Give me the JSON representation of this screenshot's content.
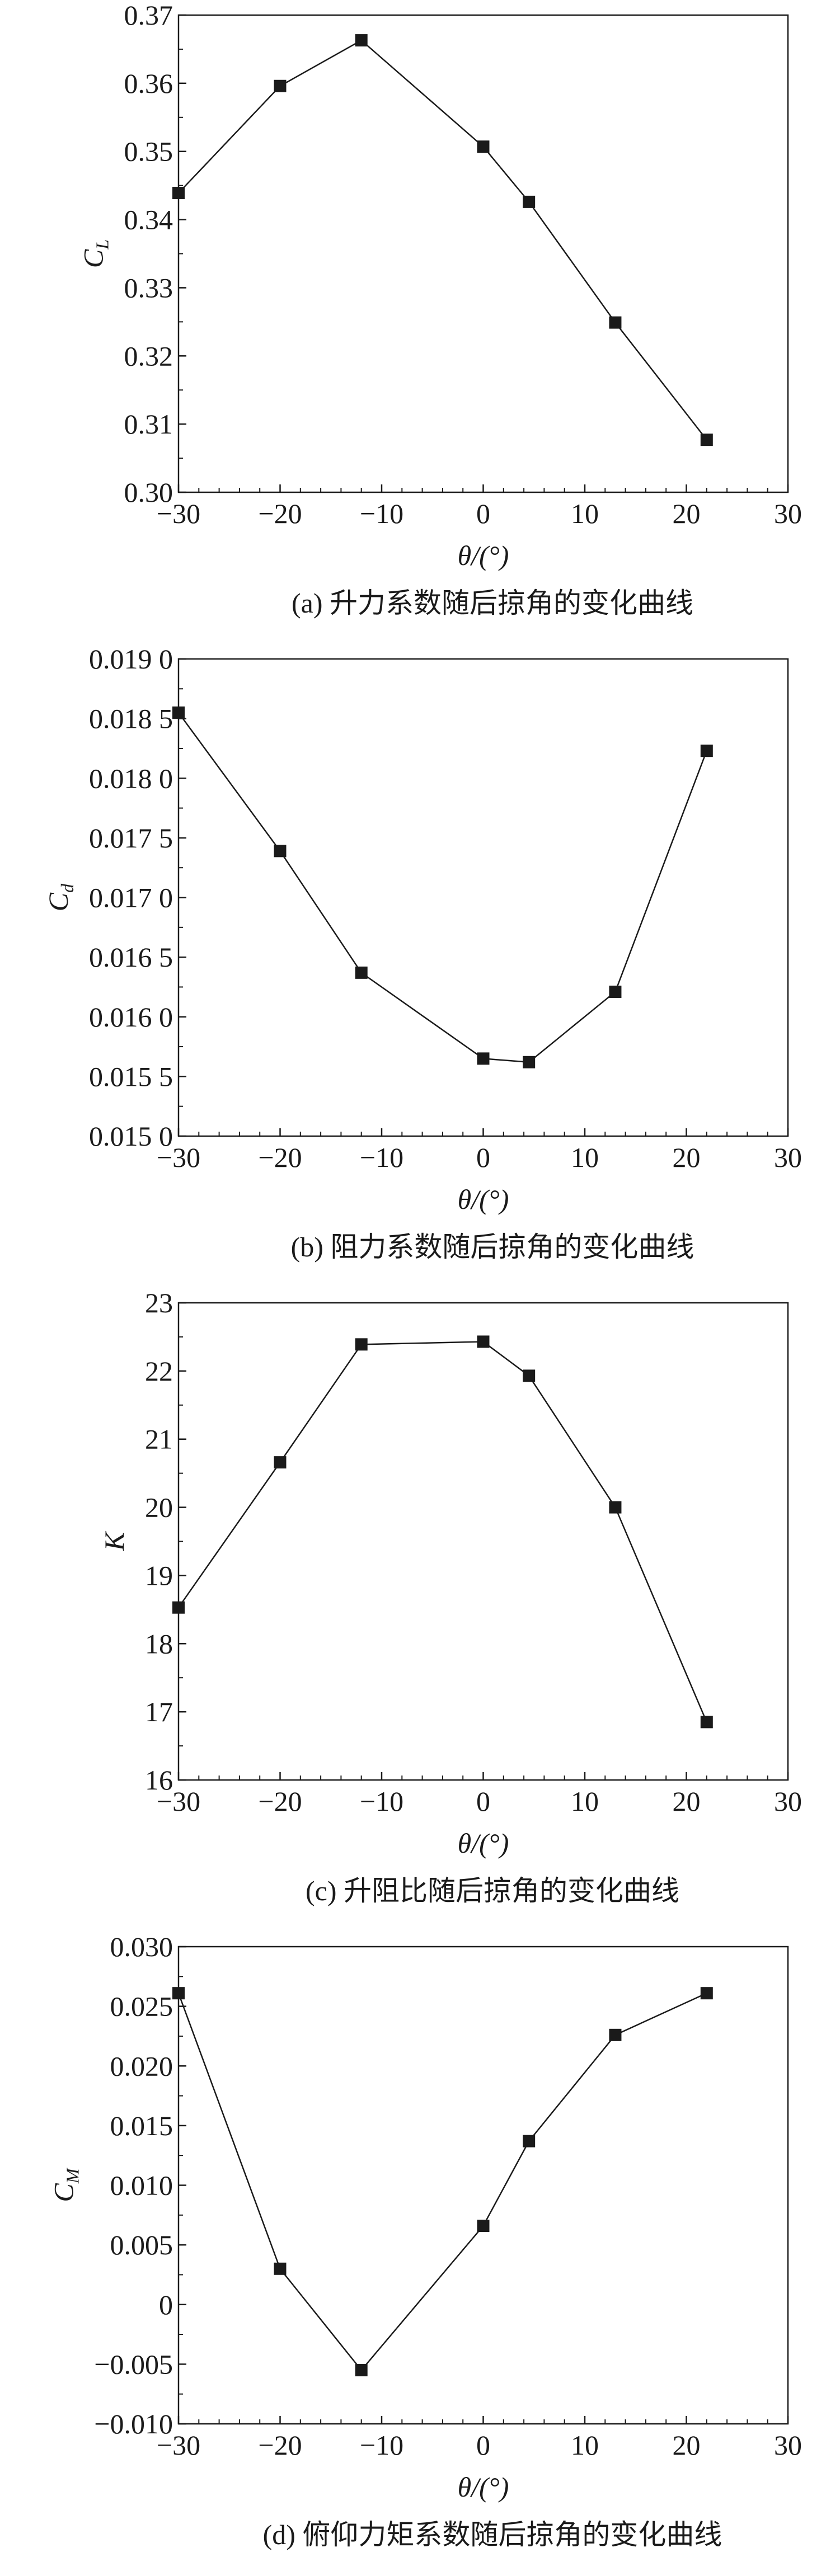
{
  "chart_data": [
    {
      "type": "line",
      "caption": "(a) 升力系数随后掠角的变化曲线",
      "xlabel": "θ/(°)",
      "ylabel": {
        "base": "C",
        "sub": "L"
      },
      "xlim": [
        -30,
        30
      ],
      "ylim": [
        0.3,
        0.37
      ],
      "xticks": [
        -30,
        -20,
        -10,
        0,
        10,
        20,
        30
      ],
      "xtick_labels": [
        "−30",
        "−20",
        "−10",
        "0",
        "10",
        "20",
        "30"
      ],
      "yticks": [
        0.3,
        0.31,
        0.32,
        0.33,
        0.34,
        0.35,
        0.36,
        0.37
      ],
      "ytick_labels": [
        "0.30",
        "0.31",
        "0.32",
        "0.33",
        "0.34",
        "0.35",
        "0.36",
        "0.37"
      ],
      "x_minor_step": 2,
      "y_minor_step": 0.005,
      "marker": "square",
      "color": "#1a1a1a",
      "grid": false,
      "x": [
        -30,
        -20,
        -12,
        0,
        4.5,
        13,
        22
      ],
      "y": [
        0.3439,
        0.3596,
        0.3663,
        0.3507,
        0.3426,
        0.3249,
        0.3077
      ]
    },
    {
      "type": "line",
      "caption": "(b) 阻力系数随后掠角的变化曲线",
      "xlabel": "θ/(°)",
      "ylabel": {
        "base": "C",
        "sub": "d"
      },
      "xlim": [
        -30,
        30
      ],
      "ylim": [
        0.015,
        0.019
      ],
      "xticks": [
        -30,
        -20,
        -10,
        0,
        10,
        20,
        30
      ],
      "xtick_labels": [
        "−30",
        "−20",
        "−10",
        "0",
        "10",
        "20",
        "30"
      ],
      "yticks": [
        0.015,
        0.0155,
        0.016,
        0.0165,
        0.017,
        0.0175,
        0.018,
        0.0185,
        0.019
      ],
      "ytick_labels": [
        "0.015 0",
        "0.015 5",
        "0.016 0",
        "0.016 5",
        "0.017 0",
        "0.017 5",
        "0.018 0",
        "0.018 5",
        "0.019 0"
      ],
      "x_minor_step": 2,
      "y_minor_step": 0.00025,
      "marker": "square",
      "color": "#1a1a1a",
      "grid": false,
      "x": [
        -30,
        -20,
        -12,
        0,
        4.5,
        13,
        22
      ],
      "y": [
        0.01855,
        0.01739,
        0.01637,
        0.01565,
        0.01562,
        0.01621,
        0.01823
      ]
    },
    {
      "type": "line",
      "caption": "(c) 升阻比随后掠角的变化曲线",
      "xlabel": "θ/(°)",
      "ylabel": {
        "base": "K",
        "sub": ""
      },
      "xlim": [
        -30,
        30
      ],
      "ylim": [
        16,
        23
      ],
      "xticks": [
        -30,
        -20,
        -10,
        0,
        10,
        20,
        30
      ],
      "xtick_labels": [
        "−30",
        "−20",
        "−10",
        "0",
        "10",
        "20",
        "30"
      ],
      "yticks": [
        16,
        17,
        18,
        19,
        20,
        21,
        22,
        23
      ],
      "ytick_labels": [
        "16",
        "17",
        "18",
        "19",
        "20",
        "21",
        "22",
        "23"
      ],
      "x_minor_step": 2,
      "y_minor_step": 0.5,
      "marker": "square",
      "color": "#1a1a1a",
      "grid": false,
      "x": [
        -30,
        -20,
        -12,
        0,
        4.5,
        13,
        22
      ],
      "y": [
        18.53,
        20.66,
        22.39,
        22.43,
        21.93,
        20.0,
        16.85
      ]
    },
    {
      "type": "line",
      "caption": "(d) 俯仰力矩系数随后掠角的变化曲线",
      "xlabel": "θ/(°)",
      "ylabel": {
        "base": "C",
        "sub": "M"
      },
      "xlim": [
        -30,
        30
      ],
      "ylim": [
        -0.01,
        0.03
      ],
      "xticks": [
        -30,
        -20,
        -10,
        0,
        10,
        20,
        30
      ],
      "xtick_labels": [
        "−30",
        "−20",
        "−10",
        "0",
        "10",
        "20",
        "30"
      ],
      "yticks": [
        -0.01,
        -0.005,
        0,
        0.005,
        0.01,
        0.015,
        0.02,
        0.025,
        0.03
      ],
      "ytick_labels": [
        "−0.010",
        "−0.005",
        "0",
        "0.005",
        "0.010",
        "0.015",
        "0.020",
        "0.025",
        "0.030"
      ],
      "x_minor_step": 2,
      "y_minor_step": 0.0025,
      "marker": "square",
      "color": "#1a1a1a",
      "grid": false,
      "x": [
        -30,
        -20,
        -12,
        0,
        4.5,
        13,
        22
      ],
      "y": [
        0.0261,
        0.003,
        -0.0055,
        0.0066,
        0.0137,
        0.0226,
        0.0261
      ]
    }
  ]
}
